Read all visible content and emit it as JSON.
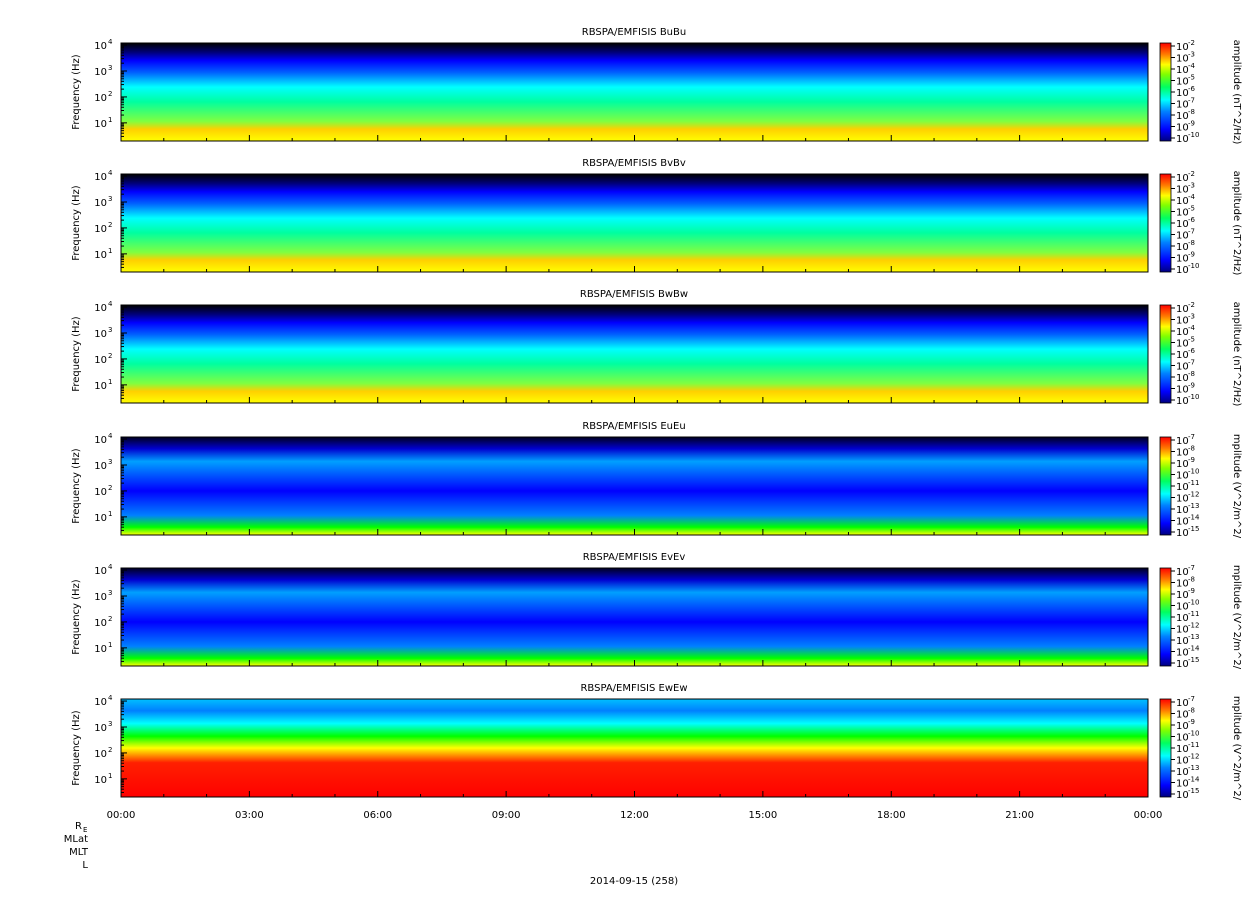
{
  "figure": {
    "date_label": "2014-09-15 (258)",
    "ephem_labels": [
      "R",
      "MLat",
      "MLT",
      "L"
    ],
    "ephem_re_sub": "E"
  },
  "colors": {
    "colormap": [
      "#000080",
      "#0000ff",
      "#0080ff",
      "#00ffff",
      "#80ff80",
      "#00dd00",
      "#ffff00",
      "#ff8000",
      "#ff0000"
    ],
    "background": "#000000"
  },
  "chart_data": [
    {
      "type": "heatmap",
      "title": "RBSPA/EMFISIS  BuBu",
      "ylabel": "Frequency (Hz)",
      "y_scale": "log",
      "ylim": [
        2,
        12000
      ],
      "y_ticks": [
        {
          "base": "10",
          "exp": "1"
        },
        {
          "base": "10",
          "exp": "2"
        },
        {
          "base": "10",
          "exp": "3"
        },
        {
          "base": "10",
          "exp": "4"
        }
      ],
      "colorbar": {
        "label": "amplitude (nT^2/Hz)",
        "ticks": [
          "-2",
          "-3",
          "-4",
          "-5",
          "-6",
          "-7",
          "-8",
          "-9",
          "-10"
        ],
        "scale": "log",
        "range": [
          1e-10,
          0.01
        ]
      }
    },
    {
      "type": "heatmap",
      "title": "RBSPA/EMFISIS  BvBv",
      "ylabel": "Frequency (Hz)",
      "y_scale": "log",
      "ylim": [
        2,
        12000
      ],
      "y_ticks": [
        {
          "base": "10",
          "exp": "1"
        },
        {
          "base": "10",
          "exp": "2"
        },
        {
          "base": "10",
          "exp": "3"
        },
        {
          "base": "10",
          "exp": "4"
        }
      ],
      "colorbar": {
        "label": "amplitude (nT^2/Hz)",
        "ticks": [
          "-2",
          "-3",
          "-4",
          "-5",
          "-6",
          "-7",
          "-8",
          "-9",
          "-10"
        ],
        "scale": "log",
        "range": [
          1e-10,
          0.01
        ]
      }
    },
    {
      "type": "heatmap",
      "title": "RBSPA/EMFISIS  BwBw",
      "ylabel": "Frequency (Hz)",
      "y_scale": "log",
      "ylim": [
        2,
        12000
      ],
      "y_ticks": [
        {
          "base": "10",
          "exp": "1"
        },
        {
          "base": "10",
          "exp": "2"
        },
        {
          "base": "10",
          "exp": "3"
        },
        {
          "base": "10",
          "exp": "4"
        }
      ],
      "colorbar": {
        "label": "amplitude (nT^2/Hz)",
        "ticks": [
          "-2",
          "-3",
          "-4",
          "-5",
          "-6",
          "-7",
          "-8",
          "-9",
          "-10"
        ],
        "scale": "log",
        "range": [
          1e-10,
          0.01
        ]
      }
    },
    {
      "type": "heatmap",
      "title": "RBSPA/EMFISIS  EuEu",
      "ylabel": "Frequency (Hz)",
      "y_scale": "log",
      "ylim": [
        2,
        12000
      ],
      "y_ticks": [
        {
          "base": "10",
          "exp": "1"
        },
        {
          "base": "10",
          "exp": "2"
        },
        {
          "base": "10",
          "exp": "3"
        },
        {
          "base": "10",
          "exp": "4"
        }
      ],
      "colorbar": {
        "label": "mplitude (V^2/m^2/",
        "ticks": [
          "-7",
          "-8",
          "-9",
          "-10",
          "-11",
          "-12",
          "-13",
          "-14",
          "-15"
        ],
        "scale": "log",
        "range": [
          1e-15,
          1e-07
        ]
      }
    },
    {
      "type": "heatmap",
      "title": "RBSPA/EMFISIS  EvEv",
      "ylabel": "Frequency (Hz)",
      "y_scale": "log",
      "ylim": [
        2,
        12000
      ],
      "y_ticks": [
        {
          "base": "10",
          "exp": "1"
        },
        {
          "base": "10",
          "exp": "2"
        },
        {
          "base": "10",
          "exp": "3"
        },
        {
          "base": "10",
          "exp": "4"
        }
      ],
      "colorbar": {
        "label": "mplitude (V^2/m^2/",
        "ticks": [
          "-7",
          "-8",
          "-9",
          "-10",
          "-11",
          "-12",
          "-13",
          "-14",
          "-15"
        ],
        "scale": "log",
        "range": [
          1e-15,
          1e-07
        ]
      }
    },
    {
      "type": "heatmap",
      "title": "RBSPA/EMFISIS  EwEw",
      "ylabel": "Frequency (Hz)",
      "y_scale": "log",
      "ylim": [
        2,
        12000
      ],
      "y_ticks": [
        {
          "base": "10",
          "exp": "1"
        },
        {
          "base": "10",
          "exp": "2"
        },
        {
          "base": "10",
          "exp": "3"
        },
        {
          "base": "10",
          "exp": "4"
        }
      ],
      "colorbar": {
        "label": "mplitude (V^2/m^2/",
        "ticks": [
          "-7",
          "-8",
          "-9",
          "-10",
          "-11",
          "-12",
          "-13",
          "-14",
          "-15"
        ],
        "scale": "log",
        "range": [
          1e-15,
          1e-07
        ]
      }
    }
  ],
  "x_axis": {
    "ticks": [
      "00:00",
      "03:00",
      "06:00",
      "09:00",
      "12:00",
      "15:00",
      "18:00",
      "21:00",
      "00:00"
    ],
    "range_hours": [
      0,
      24
    ]
  }
}
